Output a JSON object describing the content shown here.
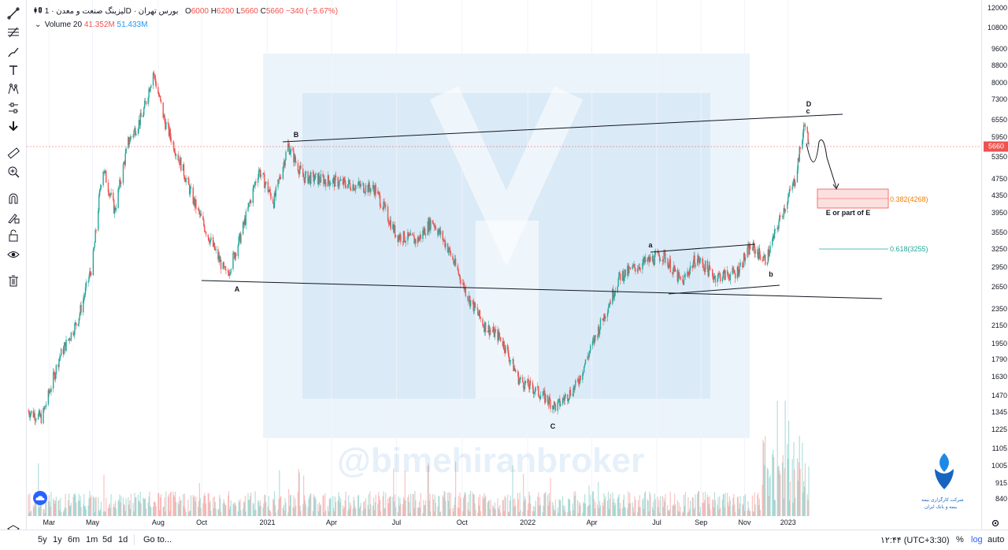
{
  "legend": {
    "symbol": "لیزینگ صنعت و معدن",
    "interval": "1D",
    "exchange": "بورس تهران",
    "open_label": "O",
    "open": "6000",
    "high_label": "H",
    "high": "6200",
    "low_label": "L",
    "low": "5660",
    "close_label": "C",
    "close": "5660",
    "change": "−340 (−5.67%)",
    "volume_label": "Volume 20",
    "volume_value": "41.352M",
    "volume_ma": "51.433M"
  },
  "colors": {
    "up": "#26a69a",
    "down": "#ef5350",
    "fib_382": "#f57c00",
    "fib_618": "#26a69a"
  },
  "watermark_text": "@bimehiranbroker",
  "logo_text_1": "شرکت کارگزاری بیمه",
  "logo_text_2": "بیمه و بانک ایران",
  "annotations": {
    "A": "A",
    "B": "B",
    "C": "C",
    "D": "D",
    "c": "c",
    "a": "a",
    "b": "b",
    "target": "E or part of E"
  },
  "fib": {
    "f382": "0.382(4268)",
    "f618": "0.618(3255)"
  },
  "current_price": "5660",
  "bottom": {
    "ranges": [
      "5y",
      "1y",
      "6m",
      "1m",
      "5d",
      "1d"
    ],
    "goto": "Go to...",
    "time": "۱۲:۴۴ (UTC+3:30)",
    "percent": "%",
    "log": "log",
    "auto": "auto"
  },
  "tools": [
    "trend-line-icon",
    "fib-icon",
    "brush-icon",
    "text-icon",
    "pattern-icon",
    "measure-icon",
    "arrow-down-icon",
    "ruler-icon",
    "zoom-icon",
    "magnet-icon",
    "lock-draw-icon",
    "lock-icon",
    "eye-icon",
    "trash-icon"
  ],
  "chart_data": {
    "type": "candlestick",
    "log_scale": true,
    "y_ticks": [
      12000,
      10800,
      9600,
      8800,
      8000,
      7300,
      6550,
      5950,
      5350,
      4750,
      4350,
      3950,
      3550,
      3250,
      2950,
      2650,
      2350,
      2150,
      1950,
      1790,
      1630,
      1470,
      1345,
      1225,
      1105,
      1005,
      915,
      840
    ],
    "x_ticks": [
      "Mar",
      "May",
      "Aug",
      "Oct",
      "2021",
      "Apr",
      "Jul",
      "Oct",
      "2022",
      "Apr",
      "Jul",
      "Sep",
      "Nov",
      "2023"
    ],
    "price_path": [
      {
        "t": "2020-02-01",
        "p": 1350
      },
      {
        "t": "2020-02-20",
        "p": 1300
      },
      {
        "t": "2020-03-15",
        "p": 1800
      },
      {
        "t": "2020-04-10",
        "p": 2200
      },
      {
        "t": "2020-05-01",
        "p": 3000
      },
      {
        "t": "2020-05-15",
        "p": 5100
      },
      {
        "t": "2020-06-01",
        "p": 4000
      },
      {
        "t": "2020-06-20",
        "p": 5800
      },
      {
        "t": "2020-07-10",
        "p": 6700
      },
      {
        "t": "2020-07-25",
        "p": 8500
      },
      {
        "t": "2020-08-10",
        "p": 6500
      },
      {
        "t": "2020-09-01",
        "p": 5200
      },
      {
        "t": "2020-09-20",
        "p": 4200
      },
      {
        "t": "2020-10-10",
        "p": 3500
      },
      {
        "t": "2020-11-05",
        "p": 2800
      },
      {
        "t": "2020-11-25",
        "p": 3500
      },
      {
        "t": "2020-12-20",
        "p": 5000
      },
      {
        "t": "2021-01-10",
        "p": 4200
      },
      {
        "t": "2021-01-30",
        "p": 5700
      },
      {
        "t": "2021-02-20",
        "p": 4800
      },
      {
        "t": "2021-04-01",
        "p": 4700
      },
      {
        "t": "2021-06-01",
        "p": 4500
      },
      {
        "t": "2021-07-01",
        "p": 3500
      },
      {
        "t": "2021-07-30",
        "p": 3400
      },
      {
        "t": "2021-08-20",
        "p": 3800
      },
      {
        "t": "2021-09-10",
        "p": 3300
      },
      {
        "t": "2021-10-10",
        "p": 2500
      },
      {
        "t": "2021-11-01",
        "p": 2150
      },
      {
        "t": "2021-11-25",
        "p": 2000
      },
      {
        "t": "2021-12-20",
        "p": 1600
      },
      {
        "t": "2022-01-15",
        "p": 1500
      },
      {
        "t": "2022-02-10",
        "p": 1380
      },
      {
        "t": "2022-03-10",
        "p": 1550
      },
      {
        "t": "2022-04-10",
        "p": 2100
      },
      {
        "t": "2022-05-10",
        "p": 2800
      },
      {
        "t": "2022-06-10",
        "p": 3000
      },
      {
        "t": "2022-07-10",
        "p": 3150
      },
      {
        "t": "2022-08-05",
        "p": 2700
      },
      {
        "t": "2022-08-25",
        "p": 3100
      },
      {
        "t": "2022-09-20",
        "p": 2800
      },
      {
        "t": "2022-10-20",
        "p": 2850
      },
      {
        "t": "2022-11-10",
        "p": 3300
      },
      {
        "t": "2022-12-01",
        "p": 3050
      },
      {
        "t": "2022-12-20",
        "p": 3800
      },
      {
        "t": "2023-01-10",
        "p": 4700
      },
      {
        "t": "2023-01-25",
        "p": 6500
      },
      {
        "t": "2023-01-30",
        "p": 5660
      }
    ]
  }
}
